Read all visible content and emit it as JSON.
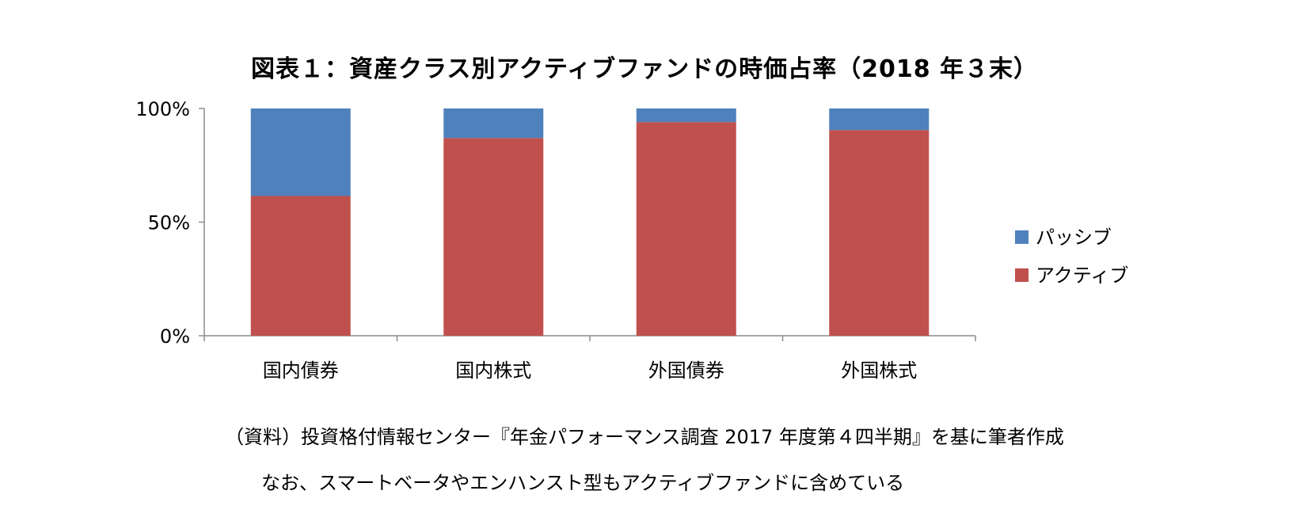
{
  "chart_data": {
    "type": "bar",
    "stacked": true,
    "title": "図表１：資産クラス別アクティブファンドの時価占率（2018 年３末）",
    "categories": [
      "国内債券",
      "国内株式",
      "外国債券",
      "外国株式"
    ],
    "series": [
      {
        "name": "アクティブ",
        "color": "#C0504D",
        "values": [
          61.5,
          87,
          94,
          90.5
        ]
      },
      {
        "name": "パッシブ",
        "color": "#4F81BD",
        "values": [
          38.5,
          13,
          6,
          9.5
        ]
      }
    ],
    "y_ticks": [
      "0%",
      "50%",
      "100%"
    ],
    "ylim": [
      0,
      100
    ],
    "legend_position": "right",
    "legend_order": [
      "パッシブ",
      "アクティブ"
    ],
    "grid": false
  },
  "notes": {
    "source": "（資料）投資格付情報センター『年金パフォーマンス調査 2017 年度第４四半期』を基に筆者作成",
    "remark": "なお、スマートベータやエンハンスト型もアクティブファンドに含めている"
  }
}
